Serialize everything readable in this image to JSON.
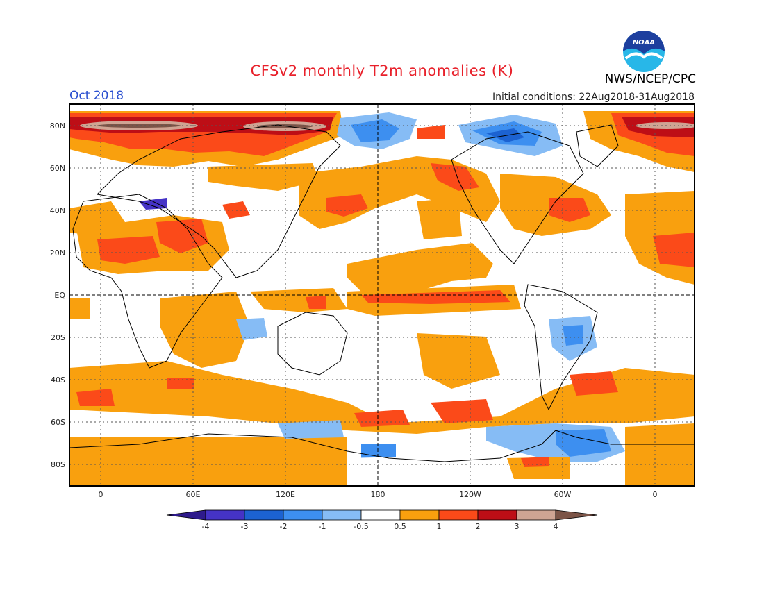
{
  "header": {
    "title": "CFSv2 monthly T2m anomalies (K)",
    "month": "Oct 2018",
    "initial_conditions": "Initial conditions: 22Aug2018-31Aug2018",
    "agency": "NWS/NCEP/CPC",
    "logo_text": "NOAA"
  },
  "map": {
    "lon_labels": [
      "0",
      "60E",
      "120E",
      "180",
      "120W",
      "60W",
      "0"
    ],
    "lat_labels": [
      "80N",
      "60N",
      "40N",
      "20N",
      "EQ",
      "20S",
      "40S",
      "60S",
      "80S"
    ],
    "colors": {
      "strong_neg": "#2e1a8c",
      "neg4": "#4533c6",
      "neg3": "#1c62d1",
      "neg2": "#3d8ff0",
      "neg1": "#86bcf5",
      "neutral": "#ffffff",
      "pos1": "#f9a00e",
      "pos2": "#fb4a19",
      "pos3": "#bd0e16",
      "pos4": "#cfa493",
      "strong_pos": "#7c5447"
    }
  },
  "colorbar": {
    "labels": [
      "-4",
      "-3",
      "-2",
      "-1",
      "-0.5",
      "0.5",
      "1",
      "2",
      "3",
      "4"
    ]
  }
}
